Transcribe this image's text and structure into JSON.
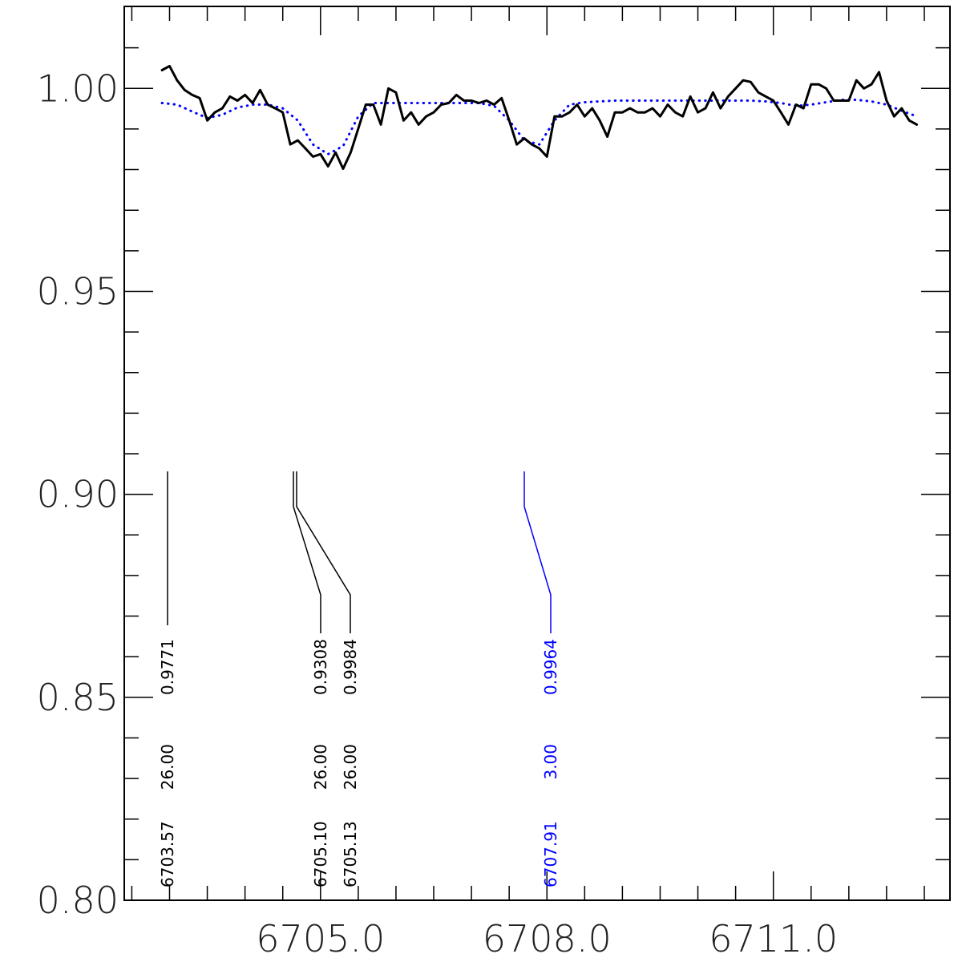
{
  "chart_data": {
    "type": "line",
    "xlim": [
      6702.4,
      6713.34
    ],
    "ylim": [
      0.8,
      1.0202
    ],
    "xticks": [
      {
        "value": 6705,
        "label": "6705.0"
      },
      {
        "value": 6708,
        "label": "6708.0"
      },
      {
        "value": 6711,
        "label": "6711.0"
      }
    ],
    "xminor": [
      6702.5,
      6703,
      6703.5,
      6704,
      6704.5,
      6705.5,
      6706,
      6706.5,
      6707,
      6707.5,
      6708.5,
      6709,
      6709.5,
      6710,
      6710.5,
      6711.5,
      6712,
      6712.5,
      6713
    ],
    "yticks": [
      {
        "value": 0.8,
        "label": "0.80"
      },
      {
        "value": 0.85,
        "label": "0.85"
      },
      {
        "value": 0.9,
        "label": "0.90"
      },
      {
        "value": 0.95,
        "label": "0.95"
      },
      {
        "value": 1,
        "label": "1.00"
      }
    ],
    "yminor": [
      0.81,
      0.82,
      0.83,
      0.84,
      0.86,
      0.87,
      0.88,
      0.89,
      0.91,
      0.92,
      0.93,
      0.94,
      0.96,
      0.97,
      0.98,
      0.99,
      1.01
    ],
    "series": [
      {
        "color": "#000000",
        "style": "solid",
        "x": [
          6702.9,
          6703,
          6703.1,
          6703.2,
          6703.3,
          6703.4,
          6703.5,
          6703.6,
          6703.7,
          6703.8,
          6703.9,
          6704,
          6704.1,
          6704.2,
          6704.3,
          6704.4,
          6704.5,
          6704.6,
          6704.7,
          6704.8,
          6704.9,
          6705,
          6705.1,
          6705.2,
          6705.3,
          6705.4,
          6705.5,
          6705.6,
          6705.7,
          6705.8,
          6705.9,
          6706,
          6706.1,
          6706.2,
          6706.3,
          6706.4,
          6706.5,
          6706.6,
          6706.7,
          6706.8,
          6706.9,
          6707,
          6707.1,
          6707.2,
          6707.3,
          6707.4,
          6707.5,
          6707.6,
          6707.7,
          6707.8,
          6707.9,
          6708,
          6708.1,
          6708.2,
          6708.3,
          6708.4,
          6708.5,
          6708.6,
          6708.7,
          6708.8,
          6708.9,
          6709,
          6709.1,
          6709.2,
          6709.3,
          6709.4,
          6709.5,
          6709.6,
          6709.7,
          6709.8,
          6709.9,
          6710,
          6710.1,
          6710.2,
          6710.3,
          6710.4,
          6710.5,
          6710.6,
          6710.7,
          6710.8,
          6710.9,
          6711,
          6711.1,
          6711.2,
          6711.3,
          6711.4,
          6711.5,
          6711.6,
          6711.7,
          6711.8,
          6711.9,
          6712,
          6712.1,
          6712.2,
          6712.3,
          6712.4,
          6712.5,
          6712.6,
          6712.7,
          6712.8,
          6712.9
        ],
        "values": [
          1.0045,
          1.0055,
          1.002,
          0.9996,
          0.9984,
          0.9976,
          0.9921,
          0.9941,
          0.9951,
          0.998,
          0.997,
          0.9984,
          0.9964,
          0.9996,
          0.996,
          0.9951,
          0.9941,
          0.9862,
          0.9872,
          0.9852,
          0.9832,
          0.9838,
          0.9808,
          0.9842,
          0.9802,
          0.9842,
          0.9901,
          0.996,
          0.996,
          0.9911,
          1.0,
          0.999,
          0.9921,
          0.9941,
          0.9911,
          0.9931,
          0.9941,
          0.996,
          0.9964,
          0.9984,
          0.997,
          0.997,
          0.9964,
          0.997,
          0.996,
          0.9976,
          0.9921,
          0.9862,
          0.9877,
          0.9862,
          0.9852,
          0.9832,
          0.9931,
          0.9931,
          0.9941,
          0.996,
          0.9931,
          0.9951,
          0.9921,
          0.9881,
          0.9941,
          0.9941,
          0.9951,
          0.9941,
          0.9941,
          0.9951,
          0.9931,
          0.996,
          0.9941,
          0.9931,
          0.998,
          0.9941,
          0.9951,
          0.999,
          0.9951,
          0.998,
          1.0,
          1.002,
          1.0016,
          0.999,
          0.998,
          0.997,
          0.9941,
          0.9911,
          0.996,
          0.9951,
          1.001,
          1.001,
          1.0,
          0.997,
          0.997,
          0.997,
          1.002,
          1.0,
          1.001,
          1.004,
          0.997,
          0.9931,
          0.9951,
          0.9921,
          0.9911
        ]
      },
      {
        "color": "#0000ff",
        "style": "dotted",
        "x": [
          6702.9,
          6703.1,
          6703.3,
          6703.5,
          6703.7,
          6703.9,
          6704.1,
          6704.3,
          6704.5,
          6704.7,
          6704.9,
          6705.1,
          6705.3,
          6705.5,
          6705.7,
          6705.9,
          6706.1,
          6706.3,
          6706.5,
          6706.7,
          6706.9,
          6707.1,
          6707.3,
          6707.5,
          6707.7,
          6707.9,
          6708.1,
          6708.3,
          6708.5,
          6708.7,
          6708.9,
          6709.1,
          6709.3,
          6709.5,
          6709.7,
          6709.9,
          6710.1,
          6710.3,
          6710.5,
          6710.7,
          6710.9,
          6711.1,
          6711.3,
          6711.5,
          6711.7,
          6711.9,
          6712.1,
          6712.3,
          6712.5,
          6712.7,
          6712.9
        ],
        "values": [
          0.9964,
          0.996,
          0.9943,
          0.9927,
          0.9935,
          0.9953,
          0.996,
          0.996,
          0.9951,
          0.9921,
          0.9862,
          0.9838,
          0.9858,
          0.9931,
          0.9964,
          0.9964,
          0.9964,
          0.9964,
          0.9964,
          0.9964,
          0.9964,
          0.9964,
          0.9957,
          0.9921,
          0.9872,
          0.9862,
          0.9921,
          0.996,
          0.9966,
          0.9968,
          0.997,
          0.997,
          0.997,
          0.997,
          0.997,
          0.997,
          0.997,
          0.997,
          0.997,
          0.997,
          0.9968,
          0.9964,
          0.9957,
          0.996,
          0.9966,
          0.9972,
          0.9972,
          0.9968,
          0.996,
          0.9945,
          0.9931
        ]
      }
    ],
    "line_labels": [
      {
        "wavelength": "6703.57",
        "strength": "26.00",
        "depth": "0.9771",
        "color": "#000000"
      },
      {
        "wavelength": "6705.10",
        "strength": "26.00",
        "depth": "0.9308",
        "color": "#000000"
      },
      {
        "wavelength": "6705.13",
        "strength": "26.00",
        "depth": "0.9984",
        "color": "#000000"
      },
      {
        "wavelength": "6707.91",
        "strength": "3.00",
        "depth": "0.9964",
        "color": "#0000ff"
      }
    ]
  }
}
